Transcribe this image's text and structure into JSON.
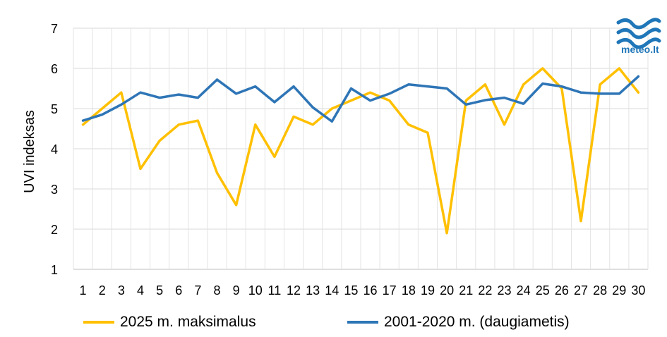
{
  "logo": {
    "text": "meteo.lt",
    "color": "#1f76b8",
    "icon": "wave-logo-icon"
  },
  "chart_data": {
    "type": "line",
    "xlabel": "",
    "ylabel": "UVI indeksas",
    "ylim": [
      1,
      7
    ],
    "yticks": [
      1,
      2,
      3,
      4,
      5,
      6,
      7
    ],
    "grid": true,
    "legend_position": "bottom",
    "categories": [
      "1",
      "2",
      "3",
      "4",
      "5",
      "6",
      "7",
      "8",
      "9",
      "10",
      "11",
      "12",
      "13",
      "14",
      "15",
      "16",
      "17",
      "18",
      "19",
      "20",
      "21",
      "22",
      "23",
      "24",
      "25",
      "26",
      "27",
      "28",
      "29",
      "30"
    ],
    "series": [
      {
        "name": "2025 m. maksimalus",
        "color": "#ffc000",
        "values": [
          4.6,
          5.0,
          5.4,
          3.5,
          4.2,
          4.6,
          4.7,
          3.4,
          2.6,
          4.6,
          3.8,
          4.8,
          4.6,
          5.0,
          5.2,
          5.4,
          5.2,
          4.6,
          4.4,
          1.9,
          5.2,
          5.6,
          4.6,
          5.6,
          6.0,
          5.5,
          2.2,
          5.6,
          6.0,
          5.4
        ]
      },
      {
        "name": "2001-2020 m. (daugiametis)",
        "color": "#2e75b6",
        "values": [
          4.7,
          4.85,
          5.1,
          5.4,
          5.27,
          5.35,
          5.27,
          5.72,
          5.37,
          5.55,
          5.16,
          5.55,
          5.03,
          4.68,
          5.5,
          5.2,
          5.37,
          5.6,
          5.55,
          5.5,
          5.1,
          5.21,
          5.27,
          5.12,
          5.62,
          5.55,
          5.4,
          5.37,
          5.37,
          5.8
        ]
      }
    ]
  }
}
